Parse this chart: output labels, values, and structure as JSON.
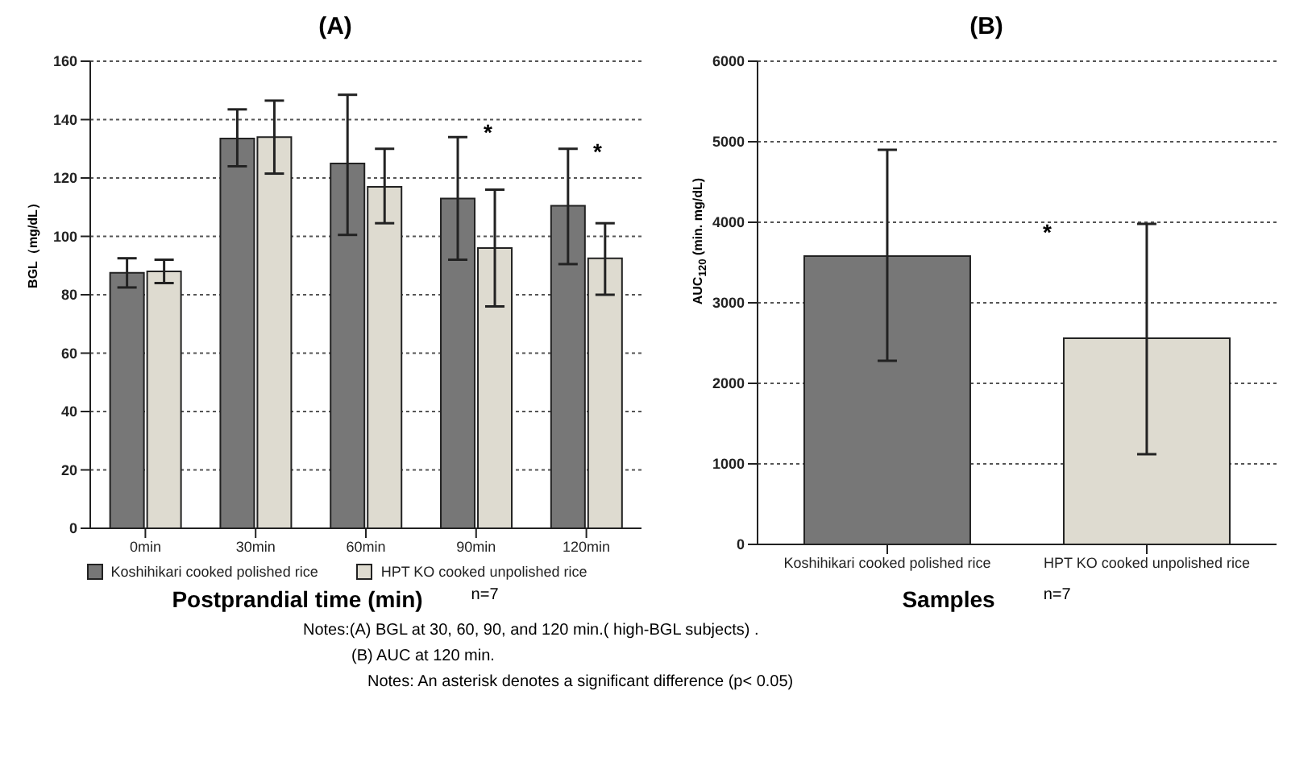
{
  "chart_data": [
    {
      "type": "bar",
      "title": "(A)",
      "xlabel": "Postprandial time (min)",
      "ylabel": "BGL（mg/dL）",
      "categories": [
        "0min",
        "30min",
        "60min",
        "90min",
        "120min"
      ],
      "series": [
        {
          "name": "Koshihikari cooked polished rice",
          "color": "#777777",
          "values": [
            87.5,
            133.5,
            125,
            113,
            110.5
          ],
          "errors": [
            [
              82.5,
              92.5
            ],
            [
              124,
              143.5
            ],
            [
              100.5,
              148.5
            ],
            [
              92,
              134
            ],
            [
              90.5,
              130
            ]
          ]
        },
        {
          "name": "HPT KO cooked unpolished rice",
          "color": "#dedbd0",
          "values": [
            88,
            134,
            117,
            96,
            92.5
          ],
          "errors": [
            [
              84,
              92
            ],
            [
              121.5,
              146.5
            ],
            [
              104.5,
              130
            ],
            [
              76,
              116
            ],
            [
              80,
              104.5
            ]
          ]
        }
      ],
      "ylim": [
        0,
        160
      ],
      "yticks": [
        0,
        20,
        40,
        60,
        80,
        100,
        120,
        140,
        160
      ],
      "grid": "y",
      "legend": "bottom",
      "annotations": [
        "*",
        "*",
        "n=7",
        "Notes:(A) BGL at 30, 60, 90, and 120 min.( high-BGL subjects) .",
        "(B) AUC at 120 min.",
        "Notes: An asterisk denotes a significant difference (p< 0.05)"
      ]
    },
    {
      "type": "bar",
      "title": "(B)",
      "xlabel": "Samples",
      "ylabel": "AUC$_{120}$ (min. mg/dL)",
      "categories": [
        "Koshihikari cooked polished rice",
        "HPT KO cooked unpolished rice"
      ],
      "series": [
        {
          "colors": [
            "#777777",
            "#dedbd0"
          ],
          "values": [
            3580,
            2560
          ],
          "errors": [
            [
              2280,
              4900
            ],
            [
              1120,
              3980
            ]
          ]
        }
      ],
      "ylim": [
        0,
        6000
      ],
      "yticks": [
        0,
        1000,
        2000,
        3000,
        4000,
        5000,
        6000
      ],
      "grid": "y",
      "annotations": [
        "*",
        "n=7"
      ]
    }
  ]
}
